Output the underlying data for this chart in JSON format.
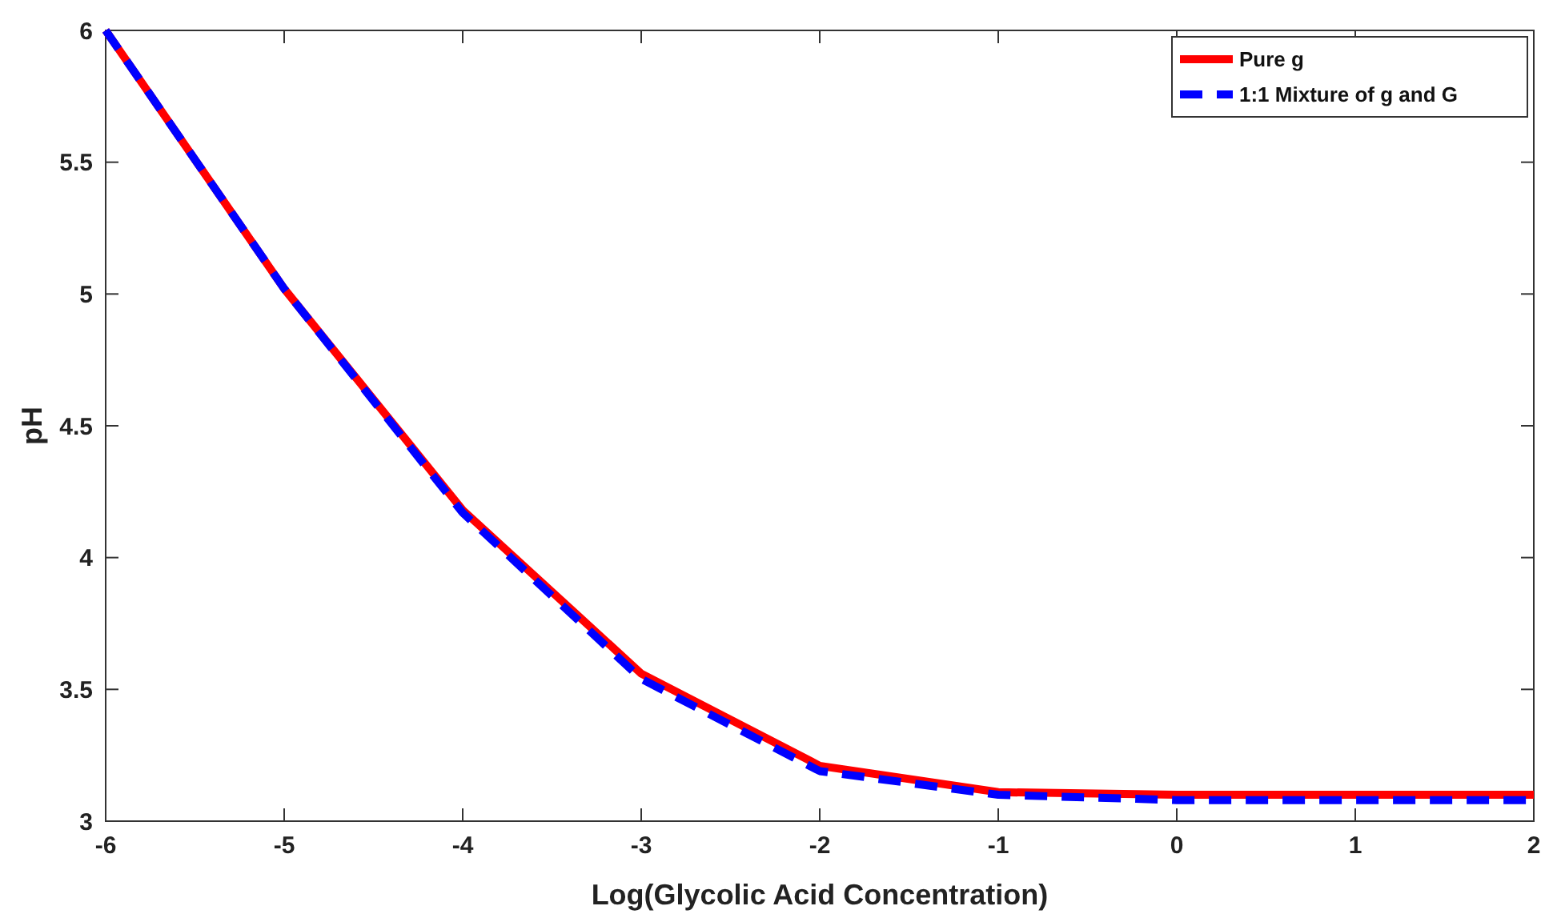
{
  "chart_data": {
    "type": "line",
    "xlabel": "Log(Glycolic Acid Concentration)",
    "ylabel": "pH",
    "x": [
      -6,
      -5,
      -4,
      -3,
      -2,
      -1,
      0,
      1,
      2
    ],
    "xlim": [
      -6,
      2
    ],
    "xticks": [
      -6,
      -5,
      -4,
      -3,
      -2,
      -1,
      0,
      1,
      2
    ],
    "ylim": [
      3,
      6
    ],
    "yticks": [
      3,
      3.5,
      4,
      4.5,
      5,
      5.5,
      6
    ],
    "grid": false,
    "legend": "top right",
    "series": [
      {
        "name": "Pure g",
        "color": "#ff0000",
        "line_style": "solid",
        "values": [
          6,
          5.02,
          4.18,
          3.56,
          3.21,
          3.11,
          3.1,
          3.1,
          3.1
        ]
      },
      {
        "name": "1:1 Mixture of g and G",
        "color": "#0000ff",
        "line_style": "dashed",
        "values": [
          6,
          5.02,
          4.17,
          3.54,
          3.19,
          3.1,
          3.08,
          3.08,
          3.08
        ]
      }
    ]
  }
}
